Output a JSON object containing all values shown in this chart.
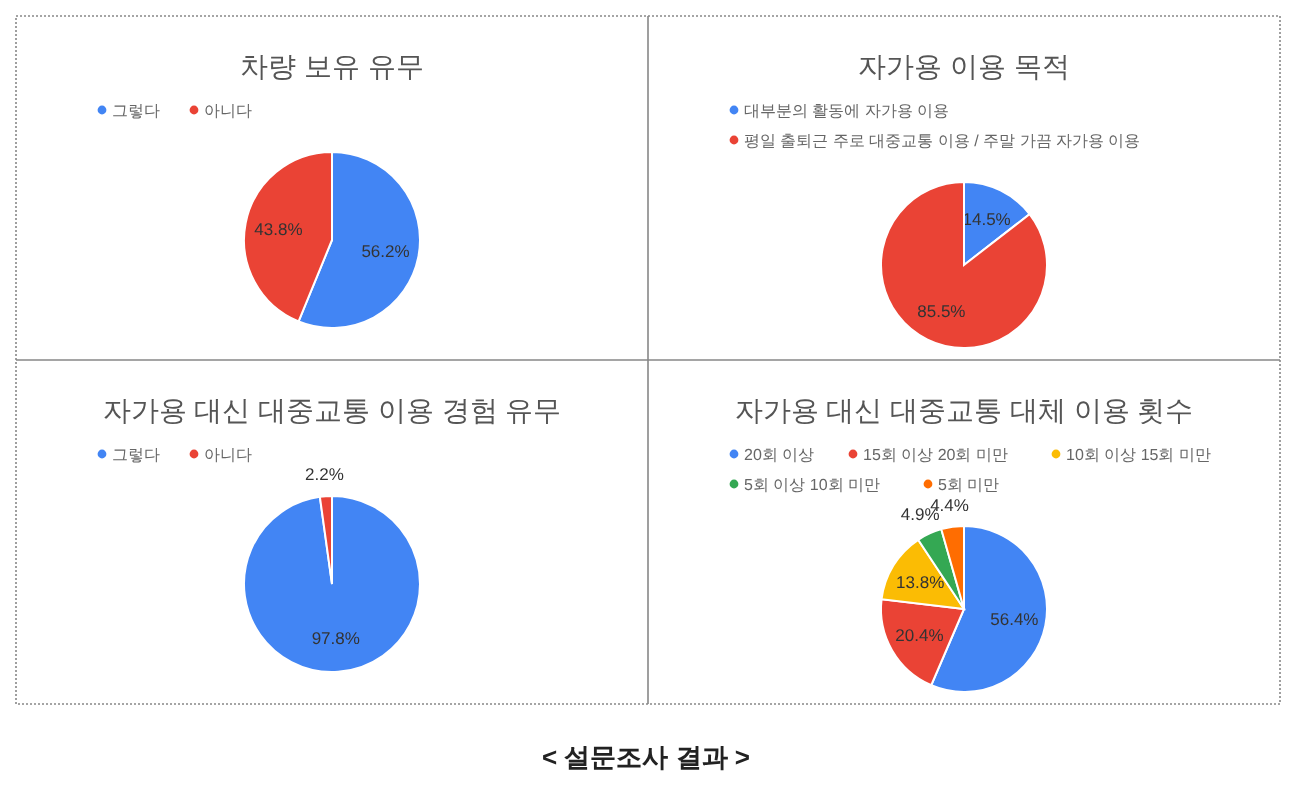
{
  "chart_data": [
    {
      "type": "pie",
      "title": "차량 보유 유무",
      "categories": [
        "그렇다",
        "아니다"
      ],
      "values": [
        56.2,
        43.8
      ],
      "value_labels": [
        "56.2%",
        "43.8%"
      ],
      "colors": [
        "#4285f4",
        "#ea4335"
      ],
      "legend": "top"
    },
    {
      "type": "pie",
      "title": "자가용 이용 목적",
      "categories": [
        "대부분의 활동에 자가용 이용",
        "평일 출퇴근 주로 대중교통 이용 / 주말 가끔 자가용 이용"
      ],
      "values": [
        14.5,
        85.5
      ],
      "value_labels": [
        "14.5%",
        "85.5%"
      ],
      "colors": [
        "#4285f4",
        "#ea4335"
      ],
      "legend": "top"
    },
    {
      "type": "pie",
      "title": "자가용 대신 대중교통 이용 경험 유무",
      "categories": [
        "그렇다",
        "아니다"
      ],
      "values": [
        97.8,
        2.2
      ],
      "value_labels": [
        "97.8%",
        "2.2%"
      ],
      "colors": [
        "#4285f4",
        "#ea4335"
      ],
      "legend": "top"
    },
    {
      "type": "pie",
      "title": "자가용 대신 대중교통 대체 이용 횟수",
      "categories": [
        "20회 이상",
        "15회 이상 20회 미만",
        "10회 이상 15회 미만",
        "5회 이상 10회 미만",
        "5회 미만"
      ],
      "values": [
        56.4,
        20.4,
        13.8,
        4.9,
        4.4
      ],
      "value_labels": [
        "56.4%",
        "20.4%",
        "13.8%",
        "4.9%",
        "4.4%"
      ],
      "colors": [
        "#4285f4",
        "#ea4335",
        "#fbbc04",
        "#34a853",
        "#ff6d01"
      ],
      "legend": "top",
      "annotations": [
        "< 설문조사 결과 >"
      ]
    }
  ]
}
